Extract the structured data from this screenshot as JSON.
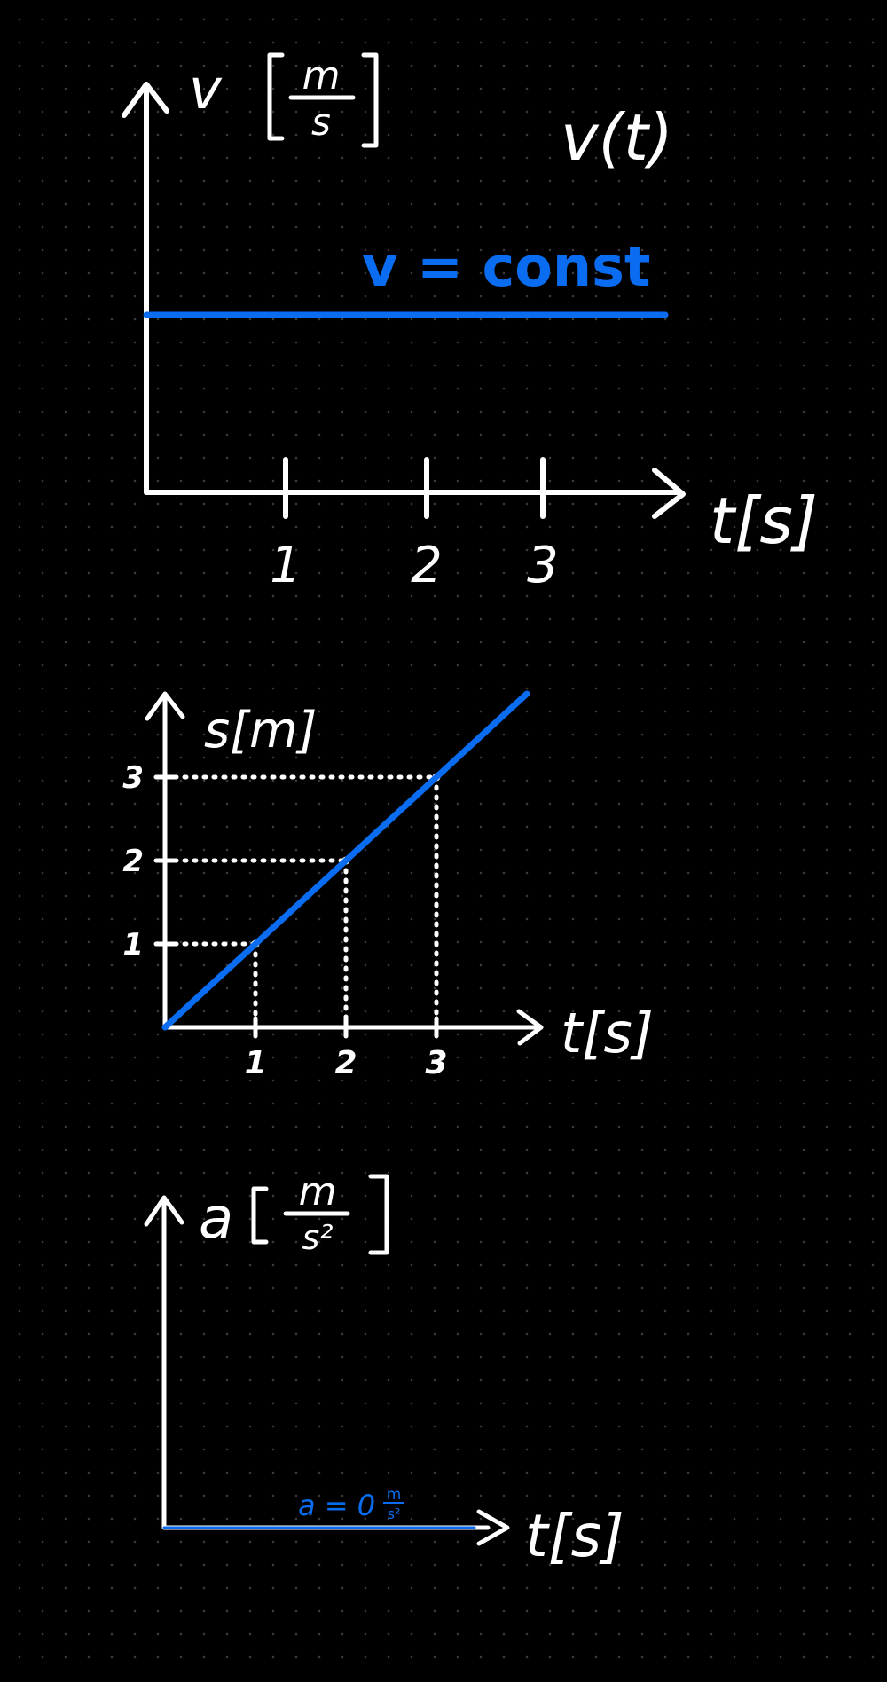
{
  "colors": {
    "background": "#000000",
    "ink": "#ffffff",
    "accent": "#0a6cf0"
  },
  "chart_data": [
    {
      "type": "line",
      "title": "v(t)",
      "ylabel_symbol": "v",
      "ylabel_unit_num": "m",
      "ylabel_unit_den": "s",
      "xlabel": "t[s]",
      "x_ticks": [
        "1",
        "2",
        "3"
      ],
      "xlim": [
        0,
        3.5
      ],
      "series": [
        {
          "x": [
            0,
            3.5
          ],
          "y": [
            1,
            1
          ]
        }
      ],
      "annotation": "v = const"
    },
    {
      "type": "line",
      "ylabel": "s[m]",
      "xlabel": "t[s]",
      "x_ticks": [
        "1",
        "2",
        "3"
      ],
      "y_ticks": [
        "1",
        "2",
        "3"
      ],
      "xlim": [
        0,
        4
      ],
      "ylim": [
        0,
        4
      ],
      "series": [
        {
          "x": [
            0,
            1,
            2,
            3,
            4
          ],
          "y": [
            0,
            1,
            2,
            3,
            4
          ]
        }
      ]
    },
    {
      "type": "line",
      "ylabel_symbol": "a",
      "ylabel_unit_num": "m",
      "ylabel_unit_den": "s²",
      "xlabel": "t[s]",
      "series": [
        {
          "x": [
            0,
            3.5
          ],
          "y": [
            0,
            0
          ]
        }
      ],
      "annotation_prefix": "a = 0",
      "annotation_unit_num": "m",
      "annotation_unit_den": "s²"
    }
  ]
}
